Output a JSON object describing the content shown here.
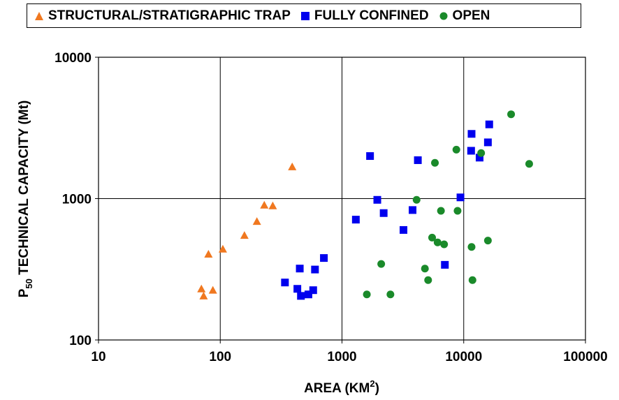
{
  "chart_data": {
    "type": "scatter",
    "xscale": "log",
    "yscale": "log",
    "xlim": [
      10,
      100000
    ],
    "ylim": [
      100,
      10000
    ],
    "grid": true,
    "legend_placement": "top",
    "xlabel_main": "AREA (KM",
    "xlabel_sup": "2",
    "xlabel_end": ")",
    "ylabel_pre": "P",
    "ylabel_sub": "50",
    "ylabel_post": " TECHNICAL CAPACITY (Mt)",
    "xticks": [
      "10",
      "100",
      "1000",
      "10000",
      "100000"
    ],
    "yticks": [
      "100",
      "1000",
      "10000"
    ],
    "series": [
      {
        "name": "STRUCTURAL/STRATIGRAPHIC TRAP",
        "marker": "triangle",
        "color": "#f07820",
        "points": [
          [
            70,
            230
          ],
          [
            73,
            205
          ],
          [
            80,
            405
          ],
          [
            87,
            225
          ],
          [
            105,
            440
          ],
          [
            158,
            550
          ],
          [
            200,
            690
          ],
          [
            230,
            900
          ],
          [
            270,
            890
          ],
          [
            390,
            1680
          ]
        ]
      },
      {
        "name": "FULLY CONFINED",
        "marker": "square",
        "color": "#0000ee",
        "points": [
          [
            340,
            255
          ],
          [
            430,
            230
          ],
          [
            450,
            320
          ],
          [
            460,
            205
          ],
          [
            530,
            210
          ],
          [
            580,
            225
          ],
          [
            600,
            315
          ],
          [
            710,
            380
          ],
          [
            1300,
            710
          ],
          [
            1700,
            2000
          ],
          [
            1950,
            980
          ],
          [
            2200,
            790
          ],
          [
            3200,
            600
          ],
          [
            3800,
            830
          ],
          [
            4200,
            1870
          ],
          [
            7000,
            340
          ],
          [
            9400,
            1020
          ],
          [
            11500,
            2180
          ],
          [
            11600,
            2870
          ],
          [
            13500,
            1950
          ],
          [
            15800,
            2500
          ],
          [
            16200,
            3350
          ]
        ]
      },
      {
        "name": "OPEN",
        "marker": "circle",
        "color": "#1a8a2a",
        "points": [
          [
            1600,
            210
          ],
          [
            2100,
            345
          ],
          [
            2500,
            210
          ],
          [
            4100,
            980
          ],
          [
            4800,
            320
          ],
          [
            5100,
            265
          ],
          [
            5500,
            530
          ],
          [
            5800,
            1790
          ],
          [
            6100,
            490
          ],
          [
            6500,
            820
          ],
          [
            6900,
            475
          ],
          [
            8700,
            2220
          ],
          [
            8900,
            820
          ],
          [
            11600,
            455
          ],
          [
            11800,
            265
          ],
          [
            13900,
            2100
          ],
          [
            15800,
            505
          ],
          [
            24500,
            3950
          ],
          [
            34500,
            1760
          ]
        ]
      }
    ]
  }
}
